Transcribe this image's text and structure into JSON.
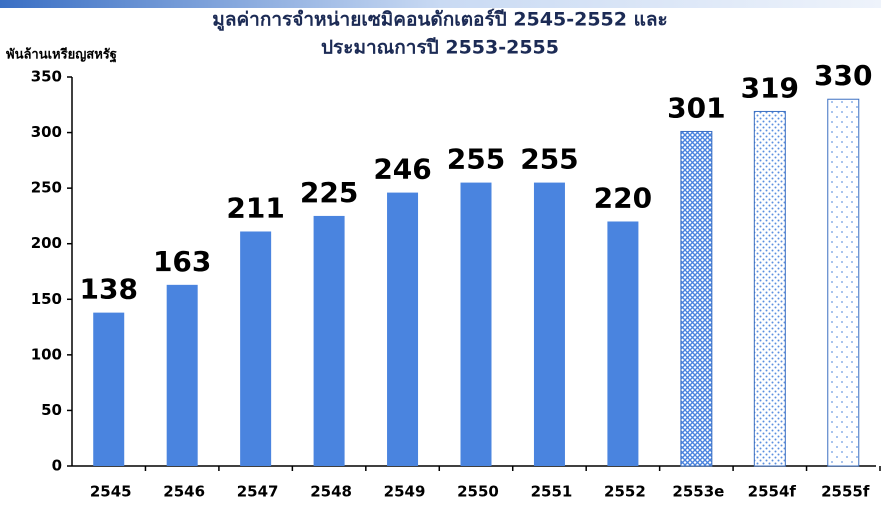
{
  "chart_data": {
    "type": "bar",
    "title": [
      "มูลค่าการจำหน่ายเซมิคอนดักเตอร์ปี 2545-2552 และ",
      "ประมาณการปี 2553-2555"
    ],
    "y_label": "พันล้านเหรียญสหรัฐ",
    "categories": [
      "2545",
      "2546",
      "2547",
      "2548",
      "2549",
      "2550",
      "2551",
      "2552",
      "2553e",
      "2554f",
      "2555f"
    ],
    "values": [
      138,
      163,
      211,
      225,
      246,
      255,
      255,
      220,
      301,
      319,
      330
    ],
    "color": "#4a84df",
    "patterns": [
      "solid",
      "solid",
      "solid",
      "solid",
      "solid",
      "solid",
      "solid",
      "solid",
      "crosshatch",
      "dots",
      "sparse-dots"
    ],
    "ylim": [
      0,
      350
    ],
    "yticks": [
      0,
      50,
      100,
      150,
      200,
      250,
      300,
      350
    ],
    "grid": false
  }
}
